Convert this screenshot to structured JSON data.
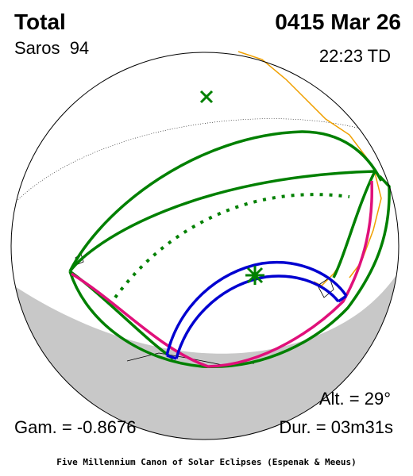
{
  "header": {
    "title": "Total",
    "date": "0415 Mar 26",
    "saros": "Saros  94",
    "time": "22:23 TD"
  },
  "footer": {
    "altitude": "Alt. = 29°",
    "gamma": "Gam. = -0.8676",
    "duration": "Dur. = 03m31s",
    "credit": "Five Millennium Canon of Solar Eclipses (Espenak & Meeus)"
  }
}
